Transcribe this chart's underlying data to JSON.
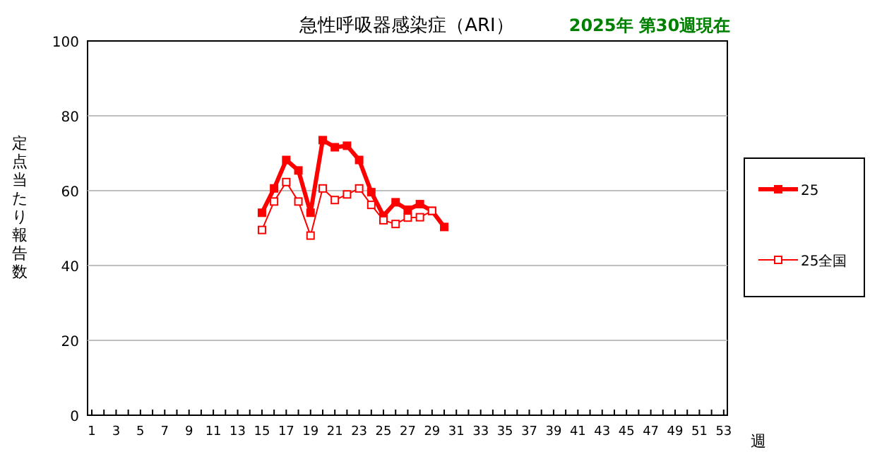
{
  "chart_data": {
    "type": "line",
    "title": "急性呼吸器感染症（ARI）",
    "subtitle": "2025年 第30週現在",
    "xlabel": "週",
    "ylabel": "定点当たり報告数",
    "x": [
      15,
      16,
      17,
      18,
      19,
      20,
      21,
      22,
      23,
      24,
      25,
      26,
      27,
      28,
      29,
      30
    ],
    "series": [
      {
        "name": "25",
        "color": "#ff0000",
        "values": [
          54.1,
          60.6,
          68.2,
          65.4,
          54.1,
          73.5,
          71.6,
          72,
          68.2,
          59.6,
          53.3,
          56.9,
          54.9,
          56.4,
          54.6,
          50.3
        ]
      },
      {
        "name": "25全国",
        "color": "#ff0000",
        "values": [
          49.5,
          57.1,
          62.3,
          57.1,
          48,
          60.6,
          57.5,
          59,
          60.6,
          56.2,
          52.1,
          51.1,
          52.8,
          52.9,
          54.6,
          null
        ]
      }
    ],
    "xlim": [
      0.65,
      53.3
    ],
    "ylim": [
      0,
      100
    ],
    "yticks": [
      0,
      20,
      40,
      60,
      80,
      100
    ],
    "xticks": [
      1,
      {
        "value": 2,
        "label": null
      },
      3,
      {
        "value": 4,
        "label": null
      },
      5,
      {
        "value": 6,
        "label": null
      },
      7,
      {
        "value": 8,
        "label": null
      },
      9,
      {
        "value": 10,
        "label": null
      },
      11,
      {
        "value": 12,
        "label": null
      },
      13,
      {
        "value": 14,
        "label": null
      },
      15,
      {
        "value": 16,
        "label": null
      },
      17,
      {
        "value": 18,
        "label": null
      },
      19,
      {
        "value": 20,
        "label": null
      },
      21,
      {
        "value": 22,
        "label": null
      },
      23,
      {
        "value": 24,
        "label": null
      },
      25,
      {
        "value": 26,
        "label": null
      },
      27,
      {
        "value": 28,
        "label": null
      },
      29,
      {
        "value": 30,
        "label": null
      },
      31,
      {
        "value": 32,
        "label": null
      },
      33,
      {
        "value": 34,
        "label": null
      },
      35,
      {
        "value": 36,
        "label": null
      },
      37,
      {
        "value": 38,
        "label": null
      },
      39,
      {
        "value": 40,
        "label": null
      },
      41,
      {
        "value": 42,
        "label": null
      },
      43,
      {
        "value": 44,
        "label": null
      },
      45,
      {
        "value": 46,
        "label": null
      },
      47,
      {
        "value": 48,
        "label": null
      },
      49,
      {
        "value": 50,
        "label": null
      },
      51,
      {
        "value": 52,
        "label": null
      },
      53
    ],
    "grid": "y",
    "legend": "right",
    "marker": "square",
    "line_style": "solid"
  }
}
